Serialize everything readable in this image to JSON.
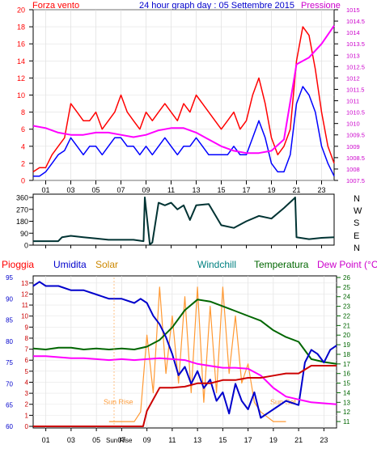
{
  "chart_data": [
    {
      "type": "line",
      "title": "24 hour graph day : 05 Settembre 2015",
      "ylabel_left": "Forza vento",
      "ylabel_right": "Pressione",
      "xlim": [
        0,
        24
      ],
      "x_ticks": [
        "01",
        "03",
        "05",
        "07",
        "09",
        "11",
        "13",
        "15",
        "17",
        "19",
        "21",
        "23"
      ],
      "left_ylim": [
        0,
        20
      ],
      "left_ticks": [
        "0",
        "2",
        "4",
        "6",
        "8",
        "10",
        "12",
        "14",
        "16",
        "18",
        "20"
      ],
      "right_ylim": [
        1007.5,
        1015
      ],
      "right_ticks": [
        "1007.5",
        "1008",
        "1008.5",
        "1009",
        "1009.5",
        "1010",
        "1010.5",
        "1011",
        "1011.5",
        "1012",
        "1012.5",
        "1013",
        "1013.5",
        "1014",
        "1014.5",
        "1015"
      ],
      "series": [
        {
          "name": "Forza vento",
          "axis": "left",
          "color": "#ff0000",
          "x": [
            0,
            0.5,
            1,
            1.5,
            2,
            2.5,
            3,
            3.5,
            4,
            4.5,
            5,
            5.5,
            6,
            6.5,
            7,
            7.5,
            8,
            8.5,
            9,
            9.5,
            10,
            10.5,
            11,
            11.5,
            12,
            12.5,
            13,
            13.5,
            14,
            14.5,
            15,
            15.5,
            16,
            16.5,
            17,
            17.5,
            18,
            18.5,
            19,
            19.5,
            20,
            20.5,
            21,
            21.5,
            22,
            22.5,
            23,
            23.5,
            24
          ],
          "y": [
            1,
            1.5,
            1.5,
            3,
            4,
            5,
            9,
            8,
            7,
            7,
            8,
            6,
            7,
            8,
            10,
            8,
            7,
            6,
            8,
            7,
            8,
            9,
            8,
            7,
            9,
            8,
            10,
            9,
            8,
            7,
            6,
            7,
            8,
            6,
            7,
            10,
            12,
            9,
            5,
            3,
            4,
            6,
            14,
            18,
            17,
            13,
            8,
            4,
            2
          ]
        },
        {
          "name": "",
          "axis": "left",
          "color": "#0000ff",
          "x": [
            0,
            0.5,
            1,
            1.5,
            2,
            2.5,
            3,
            3.5,
            4,
            4.5,
            5,
            5.5,
            6,
            6.5,
            7,
            7.5,
            8,
            8.5,
            9,
            9.5,
            10,
            10.5,
            11,
            11.5,
            12,
            12.5,
            13,
            13.5,
            14,
            14.5,
            15,
            15.5,
            16,
            16.5,
            17,
            17.5,
            18,
            18.5,
            19,
            19.5,
            20,
            20.5,
            21,
            21.5,
            22,
            22.5,
            23,
            23.5,
            24
          ],
          "y": [
            0.5,
            0.5,
            1,
            2,
            3,
            3.5,
            5,
            4,
            3,
            4,
            4,
            3,
            4,
            5,
            5,
            4,
            4,
            3,
            4,
            3,
            4,
            5,
            4,
            3,
            4,
            4,
            5,
            4,
            3,
            3,
            3,
            3,
            4,
            3,
            3,
            5,
            7,
            5,
            2,
            1,
            1,
            3,
            9,
            11,
            10,
            8,
            4,
            2,
            0.5
          ]
        },
        {
          "name": "Pressione",
          "axis": "right",
          "color": "#ff00ff",
          "x": [
            0,
            1,
            2,
            3,
            4,
            5,
            6,
            7,
            8,
            9,
            10,
            11,
            12,
            13,
            14,
            15,
            16,
            17,
            18,
            19,
            20,
            21,
            22,
            23,
            24
          ],
          "y": [
            1009.9,
            1009.8,
            1009.6,
            1009.5,
            1009.5,
            1009.6,
            1009.6,
            1009.5,
            1009.4,
            1009.5,
            1009.7,
            1009.8,
            1009.8,
            1009.6,
            1009.3,
            1009.0,
            1008.8,
            1008.7,
            1008.7,
            1008.8,
            1009.3,
            1012.6,
            1012.9,
            1013.5,
            1014.3
          ]
        }
      ]
    },
    {
      "type": "line",
      "ylabel_right": "N W S E N",
      "xlim": [
        0,
        24
      ],
      "ylim": [
        0,
        360
      ],
      "y_ticks": [
        "0",
        "90",
        "180",
        "270",
        "360"
      ],
      "series": [
        {
          "name": "",
          "color": "#003333",
          "x": [
            0,
            1,
            2,
            2.3,
            3,
            4,
            5,
            6,
            7,
            8,
            8.8,
            8.9,
            9.3,
            9.5,
            10,
            10.5,
            11,
            11.5,
            12,
            12.5,
            13,
            14,
            15,
            16,
            17,
            18,
            19,
            20,
            20.8,
            20.9,
            21,
            22,
            23,
            24
          ],
          "y": [
            30,
            30,
            30,
            60,
            70,
            60,
            50,
            40,
            40,
            40,
            30,
            360,
            5,
            20,
            320,
            300,
            320,
            270,
            300,
            190,
            300,
            310,
            150,
            130,
            180,
            220,
            200,
            280,
            350,
            360,
            60,
            45,
            55,
            60
          ]
        }
      ]
    },
    {
      "type": "line",
      "ylabel_left": "Pioggia",
      "legend": [
        "Umidita",
        "Solar",
        "Windchill",
        "Temperatura",
        "Dew Point (°C)"
      ],
      "xlim": [
        0,
        24
      ],
      "x_ticks": [
        "01",
        "03",
        "05",
        "07",
        "09",
        "11",
        "13",
        "15",
        "17",
        "19",
        "21",
        "23"
      ],
      "rain_ticks": [
        "0",
        "1",
        "2",
        "3",
        "4",
        "5",
        "6",
        "7",
        "8",
        "9",
        "10",
        "11",
        "12",
        "13"
      ],
      "hum_ticks": [
        "60",
        "65",
        "70",
        "75",
        "80",
        "85",
        "90",
        "95"
      ],
      "temp_ticks": [
        "11",
        "12",
        "13",
        "14",
        "15",
        "16",
        "17",
        "18",
        "19",
        "20",
        "21",
        "22",
        "23",
        "24",
        "25",
        "26"
      ],
      "annotations": [
        "Sun Rise",
        "Sun Rise",
        "Sun Set"
      ],
      "series": [
        {
          "name": "Umidita",
          "axis": "humidity",
          "color": "#0000cc",
          "x": [
            0,
            0.5,
            1,
            2,
            3,
            4,
            5,
            6,
            7,
            8,
            8.5,
            9,
            9.5,
            10,
            10.5,
            11,
            11.5,
            12,
            12.5,
            13,
            13.5,
            14,
            14.5,
            15,
            15.5,
            16,
            16.5,
            17,
            17.5,
            18,
            19,
            20,
            21,
            21.5,
            22,
            22.5,
            23,
            23.5,
            24
          ],
          "y": [
            93,
            94,
            93,
            93,
            92,
            92,
            91,
            90,
            90,
            89,
            90,
            89,
            86,
            84,
            81,
            77,
            72,
            74,
            70,
            73,
            69,
            71,
            66,
            68,
            63,
            70,
            66,
            64,
            68,
            62,
            64,
            66,
            65,
            75,
            78,
            77,
            75,
            78,
            79
          ]
        },
        {
          "name": "Temperatura",
          "axis": "temperature",
          "color": "#006600",
          "x": [
            0,
            1,
            2,
            3,
            4,
            5,
            6,
            7,
            8,
            9,
            10,
            11,
            12,
            13,
            14,
            15,
            16,
            17,
            18,
            19,
            20,
            21,
            22,
            23,
            24
          ],
          "y": [
            18.6,
            18.5,
            18.7,
            18.7,
            18.5,
            18.6,
            18.5,
            18.6,
            18.5,
            18.8,
            19.5,
            20.8,
            22.6,
            23.7,
            23.5,
            23.0,
            22.5,
            22.0,
            21.5,
            20.5,
            19.8,
            19.3,
            17.5,
            17.2,
            17.0
          ]
        },
        {
          "name": "Dew Point (°C)",
          "axis": "temperature",
          "color": "#ff00ff",
          "x": [
            0,
            1,
            2,
            3,
            4,
            5,
            6,
            7,
            8,
            9,
            10,
            11,
            12,
            13,
            14,
            15,
            16,
            17,
            18,
            19,
            20,
            21,
            22,
            23,
            24
          ],
          "y": [
            17.8,
            17.8,
            17.7,
            17.6,
            17.6,
            17.5,
            17.4,
            17.5,
            17.4,
            17.5,
            17.6,
            17.5,
            17.4,
            17.0,
            16.8,
            16.6,
            16.6,
            16.5,
            15.8,
            14.5,
            13.6,
            13.3,
            13.0,
            12.9,
            12.8
          ]
        },
        {
          "name": "Solar",
          "axis": "temperature",
          "color": "#ff9933",
          "x": [
            6,
            7,
            8,
            8.5,
            9,
            9.5,
            10,
            10.5,
            11,
            11.5,
            12,
            12.5,
            13,
            13.5,
            14,
            14.5,
            15,
            15.5,
            16,
            16.5,
            17,
            17.5,
            18,
            19,
            20
          ],
          "y": [
            11,
            11,
            11,
            12,
            20,
            14,
            25,
            16,
            22,
            15,
            24,
            14,
            25,
            13,
            23,
            14,
            25,
            16,
            22,
            15,
            17,
            13,
            12,
            11,
            11
          ]
        },
        {
          "name": "Pioggia",
          "axis": "rain",
          "color": "#cc0000",
          "x": [
            0,
            8,
            8.7,
            9,
            10,
            11,
            12,
            13,
            14,
            15,
            16,
            17,
            18,
            19,
            20,
            21,
            22,
            23,
            24
          ],
          "y": [
            0,
            0,
            0,
            1.4,
            3.5,
            3.5,
            3.6,
            3.9,
            3.9,
            4.2,
            4.2,
            4.4,
            4.4,
            4.6,
            4.8,
            4.8,
            5.5,
            5.5,
            5.5
          ]
        }
      ]
    }
  ],
  "header": {
    "title": "24 hour graph day : 05 Settembre 2015",
    "left_label": "Forza vento",
    "right_label": "Pressione"
  },
  "lower_header": {
    "pioggia": "Pioggia",
    "umidita": "Umidita",
    "solar": "Solar",
    "windchill": "Windchill",
    "temperatura": "Temperatura",
    "dewpoint": "Dew Point (°C)"
  },
  "compass": [
    "N",
    "W",
    "S",
    "E",
    "N"
  ],
  "sun_labels": {
    "rise_chart": "Sun Rise",
    "rise_axis": "Sun Rise",
    "set": "Sun Set"
  },
  "colors": {
    "wind": "#ff0000",
    "gust": "#0000ff",
    "pressure": "#ff00ff",
    "humidity": "#0000cc",
    "solar": "#ff9933",
    "windchill": "#008080",
    "temperature": "#006600",
    "dewpoint": "#ff00ff",
    "rain": "#cc0000",
    "direction": "#003333"
  }
}
